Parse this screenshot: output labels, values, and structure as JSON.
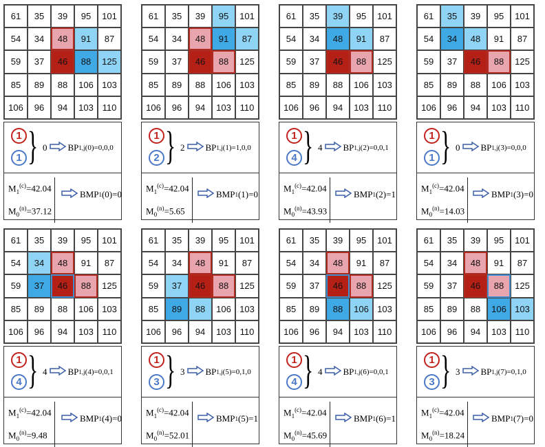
{
  "labels": {
    "bp": "BP",
    "bp_sub": "1,j",
    "m": "M",
    "m1_sub": "1",
    "m1_sup": "(c)",
    "m0_sub": "0",
    "m0_sup": "(n)",
    "bmp": "BMP",
    "bmp_sub": "1",
    "eq": "="
  },
  "colors": {
    "pink": "#e9a5ae",
    "dark_red": "#b42015",
    "light_blue": "#8fd4f5",
    "blue": "#3fa9e6",
    "red_circle": "#c0221b",
    "blue_circle": "#4a78c8"
  },
  "grid_values": [
    [
      61,
      35,
      39,
      95,
      101
    ],
    [
      54,
      34,
      48,
      91,
      87
    ],
    [
      59,
      37,
      46,
      88,
      125
    ],
    [
      85,
      89,
      88,
      106,
      103
    ],
    [
      106,
      96,
      94,
      103,
      110
    ]
  ],
  "panels": [
    {
      "cells": {
        "1,2": "pr",
        "1,3": "lb",
        "2,2": "dr",
        "2,3": "b",
        "2,4": "lb"
      },
      "red": "1",
      "blue": "1",
      "count": "0",
      "bp_arg": "(0)=0,0,0",
      "m1": "42.04",
      "m0": "37.12",
      "bmp_arg": "(0)=0"
    },
    {
      "cells": {
        "0,3": "lb",
        "1,2": "pr",
        "1,3": "b",
        "1,4": "lb",
        "2,2": "dr",
        "2,3": "pr"
      },
      "red": "1",
      "blue": "2",
      "count": "2",
      "bp_arg": "(1)=1,0,0",
      "m1": "42.04",
      "m0": "5.65",
      "bmp_arg": "(1)=0"
    },
    {
      "cells": {
        "0,2": "lb",
        "1,2": "b",
        "1,3": "lb",
        "2,2": "dr",
        "2,3": "pr"
      },
      "red": "1",
      "blue": "4",
      "count": "4",
      "bp_arg": "(2)=0,0,1",
      "m1": "42.04",
      "m0": "43.93",
      "bmp_arg": "(2)=1"
    },
    {
      "cells": {
        "0,1": "lb",
        "1,1": "b",
        "1,2": "lb",
        "2,2": "dr",
        "2,3": "pr"
      },
      "red": "1",
      "blue": "1",
      "count": "0",
      "bp_arg": "(3)=0,0,0",
      "m1": "42.04",
      "m0": "14.03",
      "bmp_arg": "(3)=0"
    },
    {
      "cells": {
        "1,1": "lb",
        "1,2": "pr",
        "2,1": "b",
        "2,2": "dr bo",
        "2,3": "pr"
      },
      "red": "1",
      "blue": "4",
      "count": "4",
      "bp_arg": "(4)=0,0,1",
      "m1": "42.04",
      "m0": "9.48",
      "bmp_arg": "(4)=0"
    },
    {
      "cells": {
        "1,2": "pr",
        "2,1": "lb",
        "2,2": "dr",
        "2,3": "pr",
        "3,1": "b",
        "3,2": "lb"
      },
      "red": "1",
      "blue": "3",
      "count": "3",
      "bp_arg": "(5)=0,1,0",
      "m1": "42.04",
      "m0": "52.01",
      "bmp_arg": "(5)=1"
    },
    {
      "cells": {
        "1,2": "pr",
        "2,2": "dr bo",
        "2,3": "pr",
        "3,2": "b",
        "3,3": "lb"
      },
      "red": "1",
      "blue": "4",
      "count": "4",
      "bp_arg": "(6)=0,0,1",
      "m1": "42.04",
      "m0": "45.69",
      "bmp_arg": "(6)=1"
    },
    {
      "cells": {
        "1,2": "pr",
        "2,2": "dr",
        "2,3": "pr bo",
        "3,3": "b",
        "3,4": "lb"
      },
      "red": "1",
      "blue": "3",
      "count": "3",
      "bp_arg": "(7)=0,1,0",
      "m1": "42.04",
      "m0": "18.24",
      "bmp_arg": "(7)=0"
    }
  ]
}
